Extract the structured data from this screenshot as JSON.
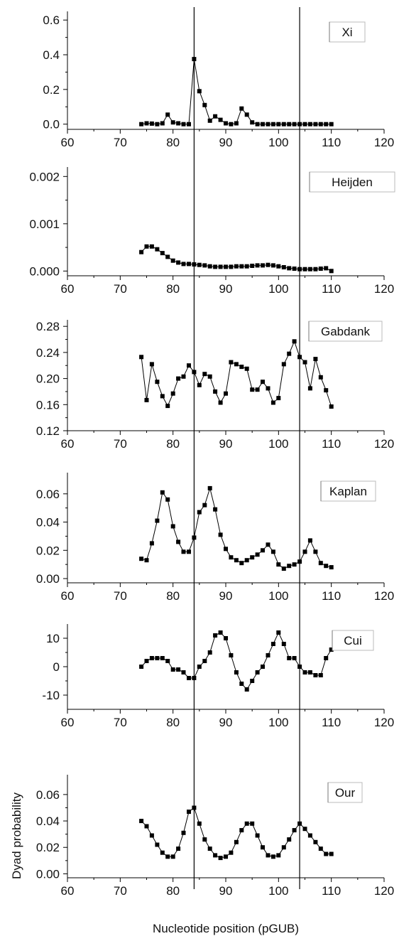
{
  "chart_data": {
    "type": "line",
    "xlabel": "Nucleotide position (pGUB)",
    "ylabel": "Dyad probability",
    "xlim": [
      60,
      120
    ],
    "xticks": [
      60,
      70,
      80,
      90,
      100,
      110,
      120
    ],
    "x": [
      74,
      75,
      76,
      77,
      78,
      79,
      80,
      81,
      82,
      83,
      84,
      85,
      86,
      87,
      88,
      89,
      90,
      91,
      92,
      93,
      94,
      95,
      96,
      97,
      98,
      99,
      100,
      101,
      102,
      103,
      104,
      105,
      106,
      107,
      108,
      109,
      110
    ],
    "reference_lines_x": [
      84,
      104
    ],
    "marker": "square",
    "color": "#000000",
    "panels": [
      {
        "label": "Xi",
        "ylim": [
          -0.03,
          0.65
        ],
        "yticks": [
          "0.0",
          "0.2",
          "0.4",
          "0.6"
        ],
        "values": [
          0.0,
          0.005,
          0.003,
          0.0,
          0.005,
          0.055,
          0.01,
          0.005,
          0.0,
          0.0,
          0.375,
          0.19,
          0.11,
          0.02,
          0.045,
          0.025,
          0.005,
          0.0,
          0.005,
          0.09,
          0.055,
          0.01,
          0.0,
          0.0,
          0.0,
          0.0,
          0.0,
          0.0,
          0.0,
          0.0,
          0.0,
          0.0,
          0.0,
          0.0,
          0.0,
          0.0,
          0.0
        ]
      },
      {
        "label": "Heijden",
        "ylim": [
          -0.0001,
          0.0022
        ],
        "yticks": [
          "0.000",
          "0.001",
          "0.002"
        ],
        "values": [
          0.0004,
          0.00052,
          0.00052,
          0.00046,
          0.00038,
          0.0003,
          0.00022,
          0.00018,
          0.00015,
          0.00015,
          0.00014,
          0.00013,
          0.00012,
          0.0001,
          9e-05,
          9e-05,
          9e-05,
          9e-05,
          0.0001,
          0.0001,
          0.0001,
          0.00011,
          0.00012,
          0.00012,
          0.00013,
          0.00012,
          0.0001,
          8e-05,
          6e-05,
          5e-05,
          4e-05,
          4e-05,
          4e-05,
          4e-05,
          5e-05,
          6e-05,
          0.0
        ]
      },
      {
        "label": "Gabdank",
        "ylim": [
          0.12,
          0.29
        ],
        "yticks": [
          "0.12",
          "0.16",
          "0.20",
          "0.24",
          "0.28"
        ],
        "values": [
          0.233,
          0.167,
          0.222,
          0.195,
          0.173,
          0.158,
          0.177,
          0.2,
          0.203,
          0.22,
          0.21,
          0.19,
          0.207,
          0.203,
          0.18,
          0.163,
          0.177,
          0.225,
          0.222,
          0.218,
          0.215,
          0.183,
          0.183,
          0.195,
          0.185,
          0.163,
          0.17,
          0.222,
          0.238,
          0.257,
          0.233,
          0.225,
          0.185,
          0.23,
          0.202,
          0.182,
          0.157
        ]
      },
      {
        "label": "Kaplan",
        "ylim": [
          -0.003,
          0.075
        ],
        "yticks": [
          "0.00",
          "0.02",
          "0.04",
          "0.06"
        ],
        "values": [
          0.014,
          0.013,
          0.025,
          0.041,
          0.061,
          0.056,
          0.037,
          0.026,
          0.019,
          0.019,
          0.029,
          0.047,
          0.052,
          0.064,
          0.049,
          0.031,
          0.021,
          0.015,
          0.013,
          0.011,
          0.013,
          0.015,
          0.017,
          0.02,
          0.024,
          0.019,
          0.01,
          0.007,
          0.009,
          0.01,
          0.012,
          0.019,
          0.027,
          0.019,
          0.011,
          0.009,
          0.008
        ]
      },
      {
        "label": "Cui",
        "ylim": [
          -15,
          15
        ],
        "yticks": [
          "-10",
          "0",
          "10"
        ],
        "values": [
          0,
          2,
          3,
          3,
          3,
          2,
          -1,
          -1,
          -2,
          -4,
          -4,
          0,
          2,
          5,
          11,
          12,
          10,
          4,
          -2,
          -6,
          -8,
          -5,
          -2,
          0,
          4,
          8,
          12,
          8,
          3,
          3,
          0,
          -2,
          -2,
          -3,
          -3,
          3,
          6
        ]
      },
      {
        "label": "Our",
        "ylim": [
          -0.003,
          0.075
        ],
        "yticks": [
          "0.00",
          "0.02",
          "0.04",
          "0.06"
        ],
        "values": [
          0.04,
          0.036,
          0.029,
          0.022,
          0.016,
          0.013,
          0.013,
          0.019,
          0.031,
          0.047,
          0.05,
          0.038,
          0.026,
          0.019,
          0.014,
          0.012,
          0.013,
          0.016,
          0.024,
          0.033,
          0.038,
          0.038,
          0.029,
          0.02,
          0.014,
          0.013,
          0.014,
          0.02,
          0.026,
          0.033,
          0.038,
          0.034,
          0.029,
          0.024,
          0.019,
          0.015,
          0.015
        ]
      }
    ]
  }
}
